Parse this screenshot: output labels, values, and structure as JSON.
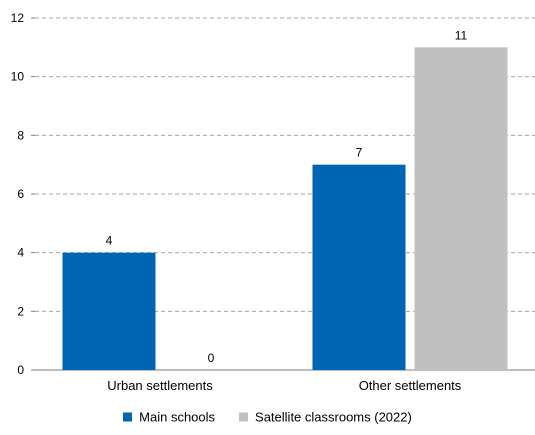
{
  "chart_data": {
    "type": "bar",
    "categories": [
      "Urban settlements",
      "Other settlements"
    ],
    "series": [
      {
        "name": "Main schools",
        "values": [
          4,
          7
        ],
        "color": "#0066b3"
      },
      {
        "name": "Satellite classrooms (2022)",
        "values": [
          0,
          11
        ],
        "color": "#c0c0c0"
      }
    ],
    "ylim": [
      0,
      12
    ],
    "yticks": [
      0,
      2,
      4,
      6,
      8,
      10,
      12
    ],
    "grid": true,
    "legend_position": "bottom"
  }
}
